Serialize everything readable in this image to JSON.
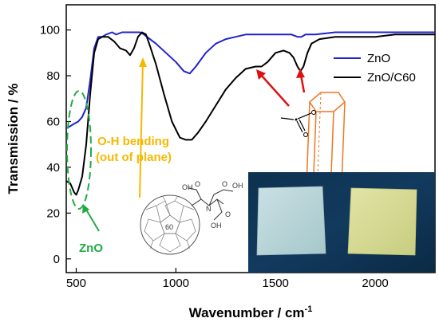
{
  "chart_data": {
    "type": "line",
    "title": "",
    "xlabel": "Wavenumber / cm",
    "xlabel_superscript": "-1",
    "ylabel": "Transmission / %",
    "xlim": [
      450,
      2300
    ],
    "ylim": [
      -6,
      111
    ],
    "xticks": [
      500,
      1000,
      1500,
      2000
    ],
    "yticks": [
      0,
      20,
      40,
      60,
      80,
      100
    ],
    "grid": false,
    "legend_position": "top-right",
    "colors": {
      "ZnO": "#2222cc",
      "ZnO/C60": "#000000",
      "annotation": "#f5b800",
      "zno_marker": "#22aa44",
      "chemical_arrows": "#e01010",
      "crystal": "#ee7722"
    },
    "series": [
      {
        "name": "ZnO",
        "x": [
          450,
          470,
          490,
          510,
          530,
          550,
          570,
          590,
          610,
          630,
          650,
          680,
          700,
          730,
          760,
          790,
          820,
          840,
          870,
          900,
          950,
          1000,
          1040,
          1070,
          1100,
          1150,
          1200,
          1250,
          1300,
          1350,
          1400,
          1450,
          1500,
          1550,
          1580,
          1610,
          1630,
          1650,
          1700,
          1800,
          1900,
          2000,
          2100,
          2200,
          2300
        ],
        "y": [
          57,
          58,
          59,
          60,
          62,
          66,
          78,
          92,
          97,
          97,
          98,
          99,
          98,
          99,
          99,
          99,
          99,
          98,
          96,
          94,
          90,
          86,
          82,
          81,
          84,
          90,
          94,
          96,
          97,
          98,
          98,
          98,
          98,
          98,
          98,
          97,
          97,
          98,
          98,
          99,
          99,
          99,
          99,
          99,
          99
        ]
      },
      {
        "name": "ZnO/C60",
        "x": [
          450,
          470,
          490,
          500,
          510,
          530,
          550,
          570,
          590,
          610,
          630,
          660,
          690,
          720,
          750,
          770,
          790,
          810,
          830,
          850,
          870,
          900,
          940,
          980,
          1020,
          1050,
          1080,
          1110,
          1150,
          1200,
          1250,
          1300,
          1350,
          1400,
          1430,
          1460,
          1500,
          1540,
          1570,
          1590,
          1610,
          1625,
          1640,
          1660,
          1680,
          1720,
          1800,
          1900,
          2000,
          2100,
          2200,
          2300
        ],
        "y": [
          34,
          33,
          29,
          28,
          30,
          36,
          50,
          72,
          90,
          96,
          97,
          97,
          95,
          92,
          91,
          89,
          92,
          97,
          99,
          98,
          93,
          85,
          72,
          60,
          53,
          52,
          52,
          55,
          60,
          67,
          74,
          79,
          83,
          84,
          84,
          86,
          90,
          91,
          90,
          88,
          84,
          82,
          84,
          90,
          94,
          96,
          97,
          97,
          97,
          98,
          98,
          98
        ]
      }
    ],
    "annotations": {
      "oh_bending_line1": "O-H bending",
      "oh_bending_line2": "(out of plane)",
      "zno_label": "ZnO",
      "c60_label": "60"
    }
  }
}
